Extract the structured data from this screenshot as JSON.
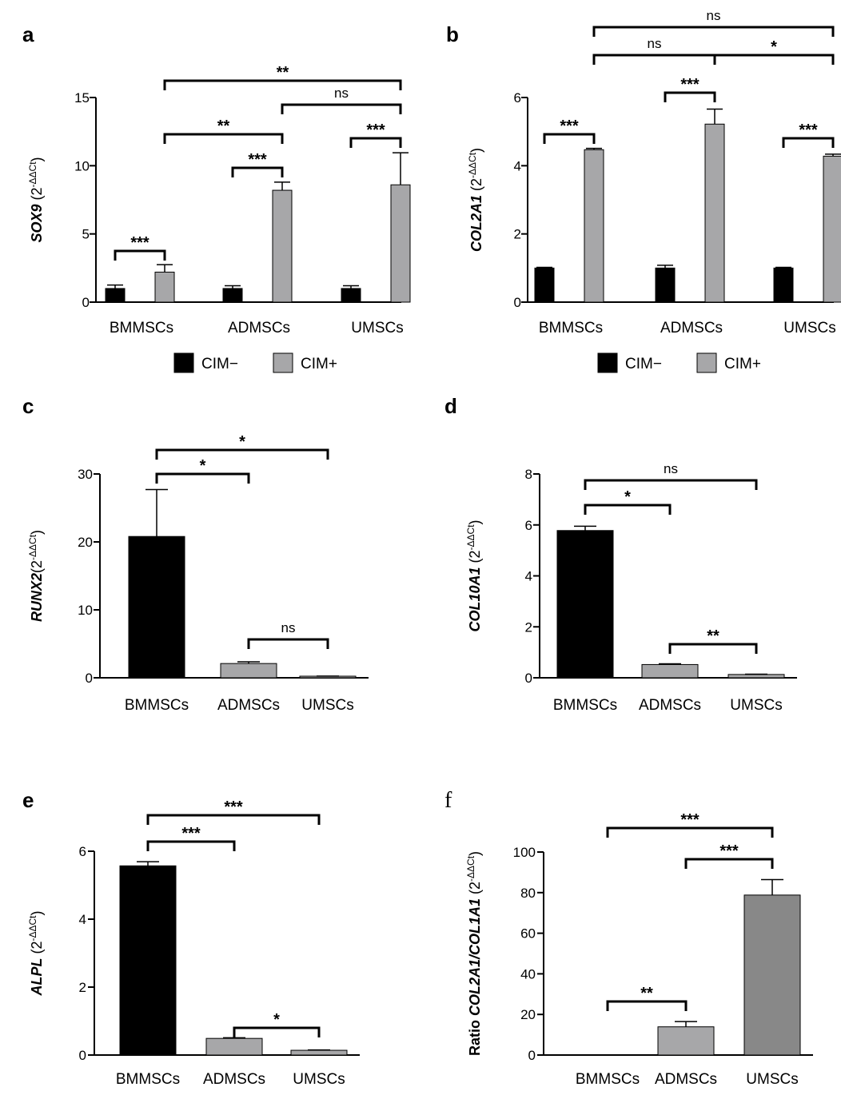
{
  "colors": {
    "cim_minus": "#000000",
    "cim_plus": "#a7a7a9",
    "black_bar": "#000000",
    "mid_gray_bar": "#a7a7a9",
    "dark_gray_bar": "#888888"
  },
  "chart_data": [
    {
      "panel": "a",
      "type": "bar",
      "categories": [
        "BMMSCs",
        "ADMSCs",
        "UMSCs"
      ],
      "ylabel_gene": "SOX9",
      "ylabel_unit": " (2",
      "ylim": [
        0,
        15
      ],
      "yticks": [
        "0",
        "5",
        "10",
        "15"
      ],
      "series": [
        {
          "name": "CIM−",
          "values": [
            1.0,
            1.0,
            1.0
          ],
          "errors": [
            0.25,
            0.2,
            0.2
          ]
        },
        {
          "name": "CIM+",
          "values": [
            2.2,
            8.2,
            8.6
          ],
          "errors": [
            0.55,
            0.6,
            2.35
          ]
        }
      ],
      "legend": [
        "CIM−",
        "CIM+"
      ],
      "significance": [
        {
          "label": "***",
          "from": [
            0,
            0
          ],
          "to": [
            0,
            1
          ]
        },
        {
          "label": "***",
          "from": [
            1,
            0
          ],
          "to": [
            1,
            1
          ]
        },
        {
          "label": "***",
          "from": [
            2,
            0
          ],
          "to": [
            2,
            1
          ]
        },
        {
          "label": "**",
          "from": [
            0,
            1
          ],
          "to": [
            1,
            1
          ]
        },
        {
          "label": "ns",
          "from": [
            1,
            1
          ],
          "to": [
            2,
            1
          ]
        },
        {
          "label": "**",
          "from": [
            0,
            1
          ],
          "to": [
            2,
            1
          ]
        }
      ]
    },
    {
      "panel": "b",
      "type": "bar",
      "categories": [
        "BMMSCs",
        "ADMSCs",
        "UMSCs"
      ],
      "ylabel_gene": "COL2A1",
      "ylabel_unit": " (2",
      "ylim": [
        0,
        6
      ],
      "yticks": [
        "0",
        "2",
        "4",
        "6"
      ],
      "series": [
        {
          "name": "CIM−",
          "values": [
            1.0,
            1.0,
            1.0
          ],
          "errors": [
            0.02,
            0.08,
            0.02
          ]
        },
        {
          "name": "CIM+",
          "values": [
            4.47,
            5.22,
            4.28
          ],
          "errors": [
            0.04,
            0.44,
            0.06
          ]
        }
      ],
      "legend": [
        "CIM−",
        "CIM+"
      ],
      "significance": [
        {
          "label": "***",
          "from": [
            0,
            0
          ],
          "to": [
            0,
            1
          ]
        },
        {
          "label": "***",
          "from": [
            1,
            0
          ],
          "to": [
            1,
            1
          ]
        },
        {
          "label": "***",
          "from": [
            2,
            0
          ],
          "to": [
            2,
            1
          ]
        },
        {
          "label": "ns",
          "from": [
            0,
            1
          ],
          "to": [
            1,
            1
          ]
        },
        {
          "label": "*",
          "from": [
            1,
            1
          ],
          "to": [
            2,
            1
          ]
        },
        {
          "label": "ns",
          "from": [
            0,
            1
          ],
          "to": [
            2,
            1
          ]
        }
      ]
    },
    {
      "panel": "c",
      "type": "bar",
      "categories": [
        "BMMSCs",
        "ADMSCs",
        "UMSCs"
      ],
      "ylabel_gene": "RUNX2",
      "ylabel_unit": "(2",
      "ylim": [
        0,
        30
      ],
      "yticks": [
        "0",
        "10",
        "20",
        "30"
      ],
      "values": [
        20.8,
        2.1,
        0.2
      ],
      "errors": [
        6.9,
        0.25,
        0.05
      ],
      "bar_colors": [
        "#000000",
        "#a7a7a9",
        "#a7a7a9"
      ],
      "significance": [
        {
          "label": "*",
          "from": 0,
          "to": 1
        },
        {
          "label": "*",
          "from": 0,
          "to": 2
        },
        {
          "label": "ns",
          "from": 1,
          "to": 2
        }
      ]
    },
    {
      "panel": "d",
      "type": "bar",
      "categories": [
        "BMMSCs",
        "ADMSCs",
        "UMSCs"
      ],
      "ylabel_gene": "COL10A1",
      "ylabel_unit": " (2",
      "ylim": [
        0,
        8
      ],
      "yticks": [
        "0",
        "2",
        "4",
        "6",
        "8"
      ],
      "values": [
        5.78,
        0.52,
        0.13
      ],
      "errors": [
        0.17,
        0.03,
        0.01
      ],
      "bar_colors": [
        "#000000",
        "#a7a7a9",
        "#a7a7a9"
      ],
      "significance": [
        {
          "label": "*",
          "from": 0,
          "to": 1
        },
        {
          "label": "ns",
          "from": 0,
          "to": 2
        },
        {
          "label": "**",
          "from": 1,
          "to": 2
        }
      ]
    },
    {
      "panel": "e",
      "type": "bar",
      "categories": [
        "BMMSCs",
        "ADMSCs",
        "UMSCs"
      ],
      "ylabel_gene": "ALPL",
      "ylabel_unit": " (2",
      "ylim": [
        0,
        6
      ],
      "yticks": [
        "0",
        "2",
        "4",
        "6"
      ],
      "values": [
        5.57,
        0.49,
        0.14
      ],
      "errors": [
        0.12,
        0.02,
        0.01
      ],
      "bar_colors": [
        "#000000",
        "#a7a7a9",
        "#a7a7a9"
      ],
      "significance": [
        {
          "label": "***",
          "from": 0,
          "to": 1
        },
        {
          "label": "***",
          "from": 0,
          "to": 2
        },
        {
          "label": "*",
          "from": 1,
          "to": 2
        }
      ]
    },
    {
      "panel": "f",
      "type": "bar",
      "categories": [
        "BMMSCs",
        "ADMSCs",
        "UMSCs"
      ],
      "ylabel_prefix": "Ratio ",
      "ylabel_gene": "COL2A1/COL1A1",
      "ylabel_unit": " (2",
      "ylim": [
        0,
        100
      ],
      "yticks": [
        "0",
        "20",
        "40",
        "60",
        "80",
        "100"
      ],
      "values": [
        0,
        13.9,
        78.8
      ],
      "errors": [
        0,
        2.6,
        7.6
      ],
      "bar_colors": [
        "#a7a7a9",
        "#a7a7a9",
        "#888888"
      ],
      "significance": [
        {
          "label": "**",
          "from": 0,
          "to": 1
        },
        {
          "label": "***",
          "from": 0,
          "to": 2
        },
        {
          "label": "***",
          "from": 1,
          "to": 2
        }
      ]
    }
  ],
  "panel_letters": [
    "a",
    "b",
    "c",
    "d",
    "e",
    "f"
  ],
  "exponent_text": "-ΔΔCt",
  "close_paren": ")"
}
